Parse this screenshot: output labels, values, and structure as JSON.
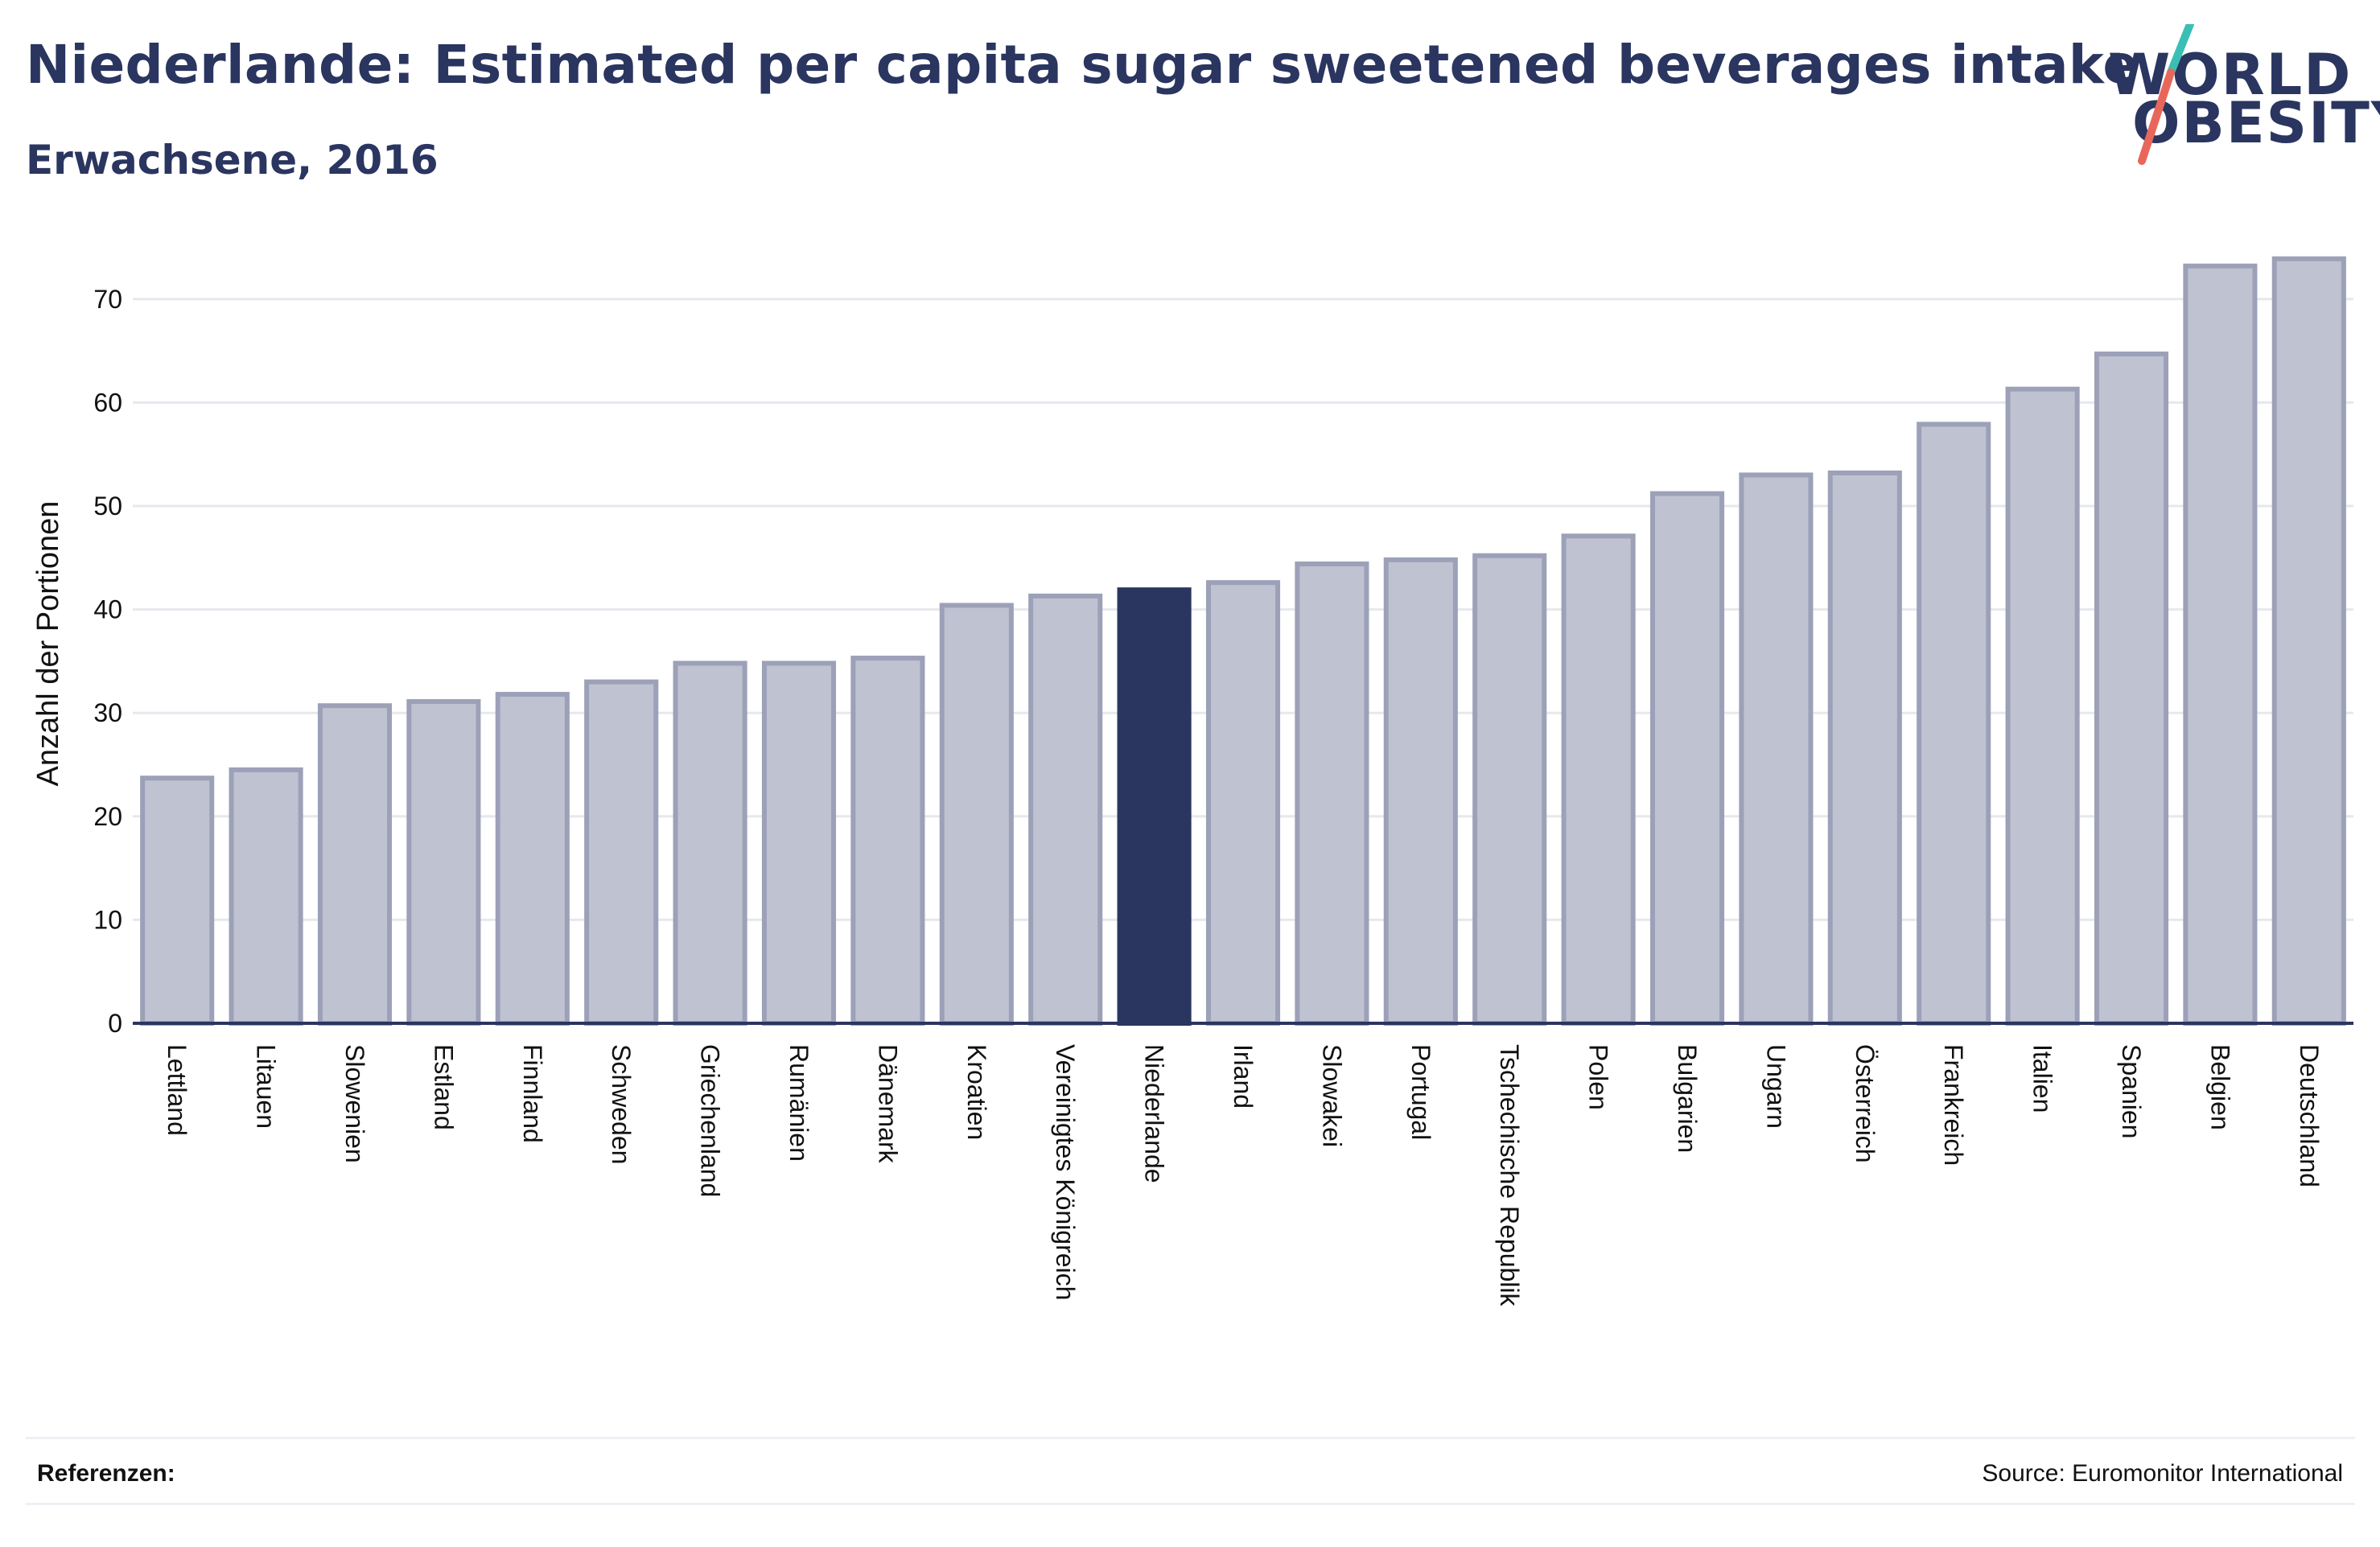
{
  "header": {
    "title": "Niederlande: Estimated per capita sugar sweetened beverages intake",
    "subtitle": "Erwachsene, 2016"
  },
  "logo": {
    "line1": "WORLD",
    "line2": "OBESITY",
    "colors": {
      "text": "#2a3560",
      "slash_top": "#3bbfb5",
      "slash_bottom": "#e8675a"
    }
  },
  "footer": {
    "references_label": "Referenzen:",
    "source": "Source: Euromonitor International"
  },
  "colors": {
    "bar_fill": "#bfc2d1",
    "bar_stroke": "#9ca1b8",
    "highlight": "#2a3560",
    "grid": "#e6e8ee",
    "axis": "#2a3560"
  },
  "chart_data": {
    "type": "bar",
    "title": "Niederlande: Estimated per capita sugar sweetened beverages intake",
    "subtitle": "Erwachsene, 2016",
    "ylabel": "Anzahl der Portionen",
    "xlabel": "",
    "ylim": [
      0,
      75
    ],
    "yticks": [
      0,
      10,
      20,
      30,
      40,
      50,
      60,
      70
    ],
    "grid": true,
    "highlight": "Niederlande",
    "categories": [
      "Lettland",
      "Litauen",
      "Slowenien",
      "Estland",
      "Finnland",
      "Schweden",
      "Griechenland",
      "Rumänien",
      "Dänemark",
      "Kroatien",
      "Vereinigtes Königreich",
      "Niederlande",
      "Irland",
      "Slowakei",
      "Portugal",
      "Tschechische Republik",
      "Polen",
      "Bulgarien",
      "Ungarn",
      "Österreich",
      "Frankreich",
      "Italien",
      "Spanien",
      "Belgien",
      "Deutschland"
    ],
    "values": [
      23.7,
      24.5,
      30.7,
      31.1,
      31.8,
      33.0,
      34.8,
      34.8,
      35.3,
      40.4,
      41.3,
      41.9,
      42.6,
      44.4,
      44.8,
      45.2,
      47.1,
      51.2,
      53.0,
      53.2,
      57.9,
      61.3,
      64.7,
      73.2,
      73.9
    ]
  }
}
